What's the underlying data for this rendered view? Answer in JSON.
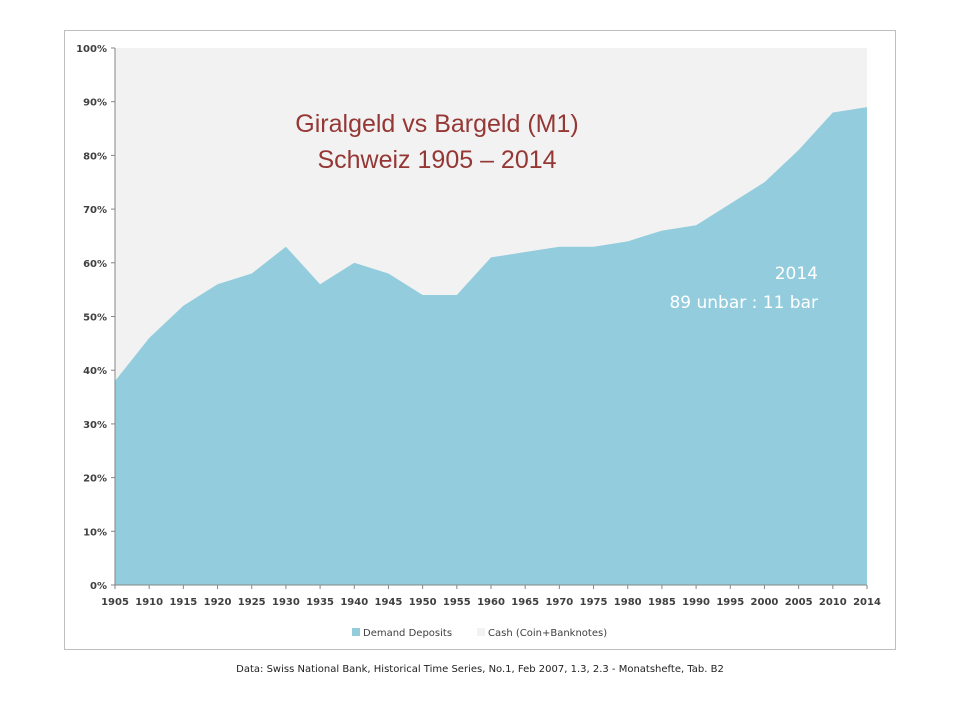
{
  "chart_data": {
    "type": "area",
    "stacked": true,
    "percent": true,
    "title_lines": [
      "Giralgeld vs Bargeld (M1)",
      "Schweiz 1905 – 2014"
    ],
    "categories": [
      "1905",
      "1910",
      "1915",
      "1920",
      "1925",
      "1930",
      "1935",
      "1940",
      "1945",
      "1950",
      "1955",
      "1960",
      "1965",
      "1970",
      "1975",
      "1980",
      "1985",
      "1990",
      "1995",
      "2000",
      "2005",
      "2010",
      "2014"
    ],
    "series": [
      {
        "name": "Demand Deposits",
        "color": "#93cddd",
        "values": [
          38,
          46,
          52,
          56,
          58,
          63,
          56,
          60,
          58,
          54,
          54,
          61,
          62,
          63,
          63,
          64,
          66,
          67,
          71,
          75,
          81,
          88,
          89
        ]
      },
      {
        "name": "Cash (Coin+Banknotes)",
        "color": "#f2f2f2",
        "values": [
          62,
          54,
          48,
          44,
          42,
          37,
          44,
          40,
          42,
          46,
          46,
          39,
          38,
          37,
          37,
          36,
          34,
          33,
          29,
          25,
          19,
          12,
          11
        ]
      }
    ],
    "y_ticks": [
      "0%",
      "10%",
      "20%",
      "30%",
      "40%",
      "50%",
      "60%",
      "70%",
      "80%",
      "90%",
      "100%"
    ],
    "ylim": [
      0,
      100
    ],
    "grid": false,
    "legend_position": "bottom",
    "annotation_lines": [
      "2014",
      "89 unbar : 11 bar"
    ]
  },
  "source_note": "Data: Swiss National Bank, Historical Time Series, No.1, Feb 2007, 1.3, 2.3  -  Monatshefte, Tab. B2"
}
